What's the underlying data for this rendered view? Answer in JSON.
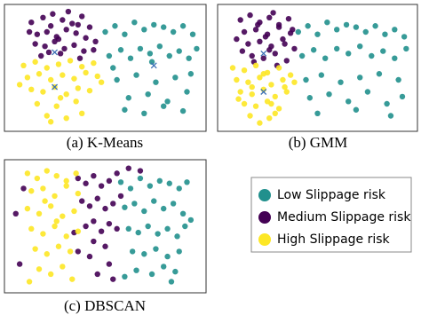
{
  "chart_data": [
    {
      "type": "scatter",
      "title": "(a) K-Means",
      "xlim": [
        0,
        100
      ],
      "ylim": [
        0,
        100
      ],
      "series": [
        {
          "color": "#440154",
          "x": [
            12,
            18,
            22,
            28,
            33,
            38,
            42,
            15,
            20,
            25,
            30,
            35,
            40,
            45,
            14,
            19,
            24,
            29,
            34,
            39,
            17,
            27,
            37,
            23,
            31,
            44,
            11,
            36,
            26,
            21
          ],
          "values": [
            88,
            92,
            85,
            90,
            87,
            93,
            84,
            78,
            80,
            76,
            82,
            79,
            75,
            72,
            70,
            68,
            72,
            66,
            69,
            64,
            60,
            62,
            58,
            95,
            97,
            65,
            80,
            86,
            74,
            63
          ]
        },
        {
          "color": "#fde725",
          "x": [
            8,
            14,
            20,
            26,
            32,
            38,
            44,
            10,
            16,
            22,
            28,
            34,
            40,
            46,
            12,
            18,
            24,
            30,
            36,
            42,
            15,
            25,
            35,
            20,
            30,
            48,
            6,
            38,
            27,
            22
          ],
          "values": [
            52,
            55,
            50,
            53,
            56,
            51,
            54,
            42,
            45,
            40,
            44,
            41,
            46,
            43,
            32,
            30,
            34,
            28,
            33,
            31,
            20,
            18,
            22,
            10,
            8,
            38,
            36,
            12,
            25,
            5
          ]
        },
        {
          "color": "#21908d",
          "x": [
            50,
            55,
            60,
            65,
            70,
            75,
            80,
            85,
            90,
            95,
            52,
            58,
            63,
            68,
            73,
            78,
            83,
            88,
            93,
            97,
            56,
            66,
            76,
            86,
            94,
            62,
            72,
            82,
            92,
            60,
            70,
            80,
            90,
            54,
            74
          ],
          "values": [
            80,
            85,
            78,
            88,
            82,
            86,
            84,
            80,
            85,
            78,
            60,
            65,
            58,
            66,
            62,
            68,
            60,
            64,
            58,
            66,
            40,
            44,
            38,
            42,
            45,
            25,
            28,
            22,
            30,
            15,
            12,
            18,
            14,
            50,
            55
          ]
        }
      ],
      "centroids": {
        "color": "#3b6fb6",
        "x": [
          24,
          24,
          75
        ],
        "y": [
          63,
          34,
          52
        ]
      }
    },
    {
      "type": "scatter",
      "title": "(b) GMM",
      "xlim": [
        0,
        100
      ],
      "ylim": [
        0,
        100
      ],
      "series": [
        {
          "color": "#440154",
          "x": [
            10,
            15,
            20,
            25,
            30,
            35,
            12,
            18,
            24,
            30,
            36,
            14,
            20,
            26,
            32,
            38,
            16,
            22,
            28,
            34,
            11,
            27,
            33,
            19,
            23,
            29,
            8,
            37,
            25,
            17
          ],
          "values": [
            90,
            94,
            88,
            92,
            86,
            91,
            80,
            82,
            78,
            84,
            79,
            70,
            72,
            68,
            74,
            66,
            60,
            58,
            62,
            56,
            64,
            96,
            70,
            86,
            76,
            52,
            74,
            82,
            65,
            55
          ]
        },
        {
          "color": "#fde725",
          "x": [
            6,
            12,
            18,
            24,
            30,
            36,
            8,
            14,
            20,
            26,
            32,
            10,
            16,
            22,
            28,
            34,
            12,
            18,
            24,
            30,
            15,
            25,
            20,
            28,
            9,
            33,
            22,
            16,
            26,
            38
          ],
          "values": [
            50,
            48,
            52,
            46,
            50,
            44,
            40,
            38,
            42,
            36,
            40,
            30,
            28,
            32,
            26,
            30,
            20,
            18,
            22,
            16,
            10,
            8,
            4,
            12,
            24,
            34,
            45,
            34,
            20,
            38
          ]
        },
        {
          "color": "#21908d",
          "x": [
            40,
            45,
            50,
            55,
            60,
            65,
            70,
            75,
            80,
            85,
            90,
            95,
            42,
            48,
            54,
            60,
            66,
            72,
            78,
            84,
            90,
            96,
            44,
            52,
            62,
            72,
            82,
            92,
            46,
            56,
            66,
            76,
            86,
            94,
            50,
            70,
            88
          ],
          "values": [
            80,
            85,
            78,
            88,
            82,
            86,
            84,
            80,
            85,
            78,
            82,
            76,
            60,
            65,
            58,
            66,
            62,
            68,
            60,
            64,
            58,
            66,
            40,
            44,
            38,
            42,
            45,
            40,
            25,
            28,
            22,
            30,
            20,
            26,
            12,
            15,
            10
          ]
        }
      ],
      "centroids": {
        "color": "#3b6fb6",
        "x": [
          22,
          22
        ],
        "y": [
          62,
          30
        ]
      }
    },
    {
      "type": "scatter",
      "title": "(c) DBSCAN",
      "xlim": [
        0,
        100
      ],
      "ylim": [
        0,
        100
      ],
      "series": [
        {
          "name": "Low Slippage risk",
          "color": "#21908d",
          "x": [
            58,
            63,
            68,
            73,
            78,
            83,
            88,
            92,
            60,
            65,
            70,
            75,
            80,
            85,
            90,
            62,
            67,
            72,
            77,
            82,
            87,
            91,
            64,
            70,
            76,
            82,
            88,
            66,
            74,
            80,
            86,
            60,
            84,
            94
          ],
          "values": [
            85,
            80,
            88,
            82,
            86,
            84,
            80,
            85,
            65,
            68,
            62,
            70,
            64,
            68,
            60,
            48,
            45,
            50,
            44,
            48,
            42,
            50,
            30,
            28,
            32,
            26,
            30,
            15,
            12,
            18,
            14,
            10,
            6,
            55
          ]
        },
        {
          "name": "Medium Slippage risk",
          "color": "#440154",
          "x": [
            36,
            40,
            44,
            48,
            52,
            56,
            38,
            42,
            46,
            50,
            54,
            58,
            40,
            44,
            48,
            52,
            56,
            36,
            42,
            50,
            4,
            6,
            8,
            46,
            54,
            62,
            68,
            34,
            44,
            52
          ],
          "values": [
            88,
            84,
            90,
            82,
            86,
            92,
            70,
            66,
            72,
            64,
            68,
            74,
            50,
            54,
            46,
            52,
            48,
            30,
            26,
            34,
            60,
            20,
            80,
            12,
            8,
            96,
            94,
            45,
            38,
            20
          ]
        },
        {
          "name": "High Slippage risk",
          "color": "#fde725",
          "x": [
            10,
            15,
            20,
            25,
            30,
            35,
            12,
            18,
            24,
            30,
            36,
            10,
            16,
            22,
            28,
            34,
            12,
            18,
            24,
            30,
            36,
            14,
            20,
            26,
            32,
            16,
            22,
            28,
            11,
            33,
            19,
            25
          ],
          "values": [
            92,
            88,
            94,
            90,
            86,
            92,
            78,
            80,
            74,
            82,
            76,
            64,
            60,
            66,
            58,
            62,
            48,
            44,
            50,
            42,
            46,
            32,
            28,
            34,
            30,
            16,
            12,
            18,
            6,
            8,
            70,
            54
          ]
        }
      ]
    }
  ]
}
